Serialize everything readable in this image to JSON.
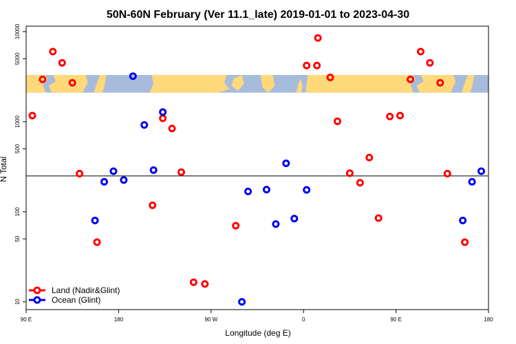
{
  "chart_data": {
    "type": "scatter",
    "title": "50N-60N February (Ver 11.1_late)   2019-01-01 to 2023-04-30",
    "xlabel": "Longitude (deg E)",
    "ylabel": "N Total",
    "xscale": "linear",
    "yscale": "log",
    "xlim": [
      90,
      540
    ],
    "ylim": [
      8.2,
      11500
    ],
    "x_ticks": [
      {
        "value": 90,
        "label": "90 E"
      },
      {
        "value": 180,
        "label": "180"
      },
      {
        "value": 270,
        "label": "90 W"
      },
      {
        "value": 360,
        "label": "0"
      },
      {
        "value": 450,
        "label": "90 E"
      },
      {
        "value": 540,
        "label": "180"
      }
    ],
    "y_ticks": [
      {
        "value": 10,
        "label": "10"
      },
      {
        "value": 50,
        "label": "50"
      },
      {
        "value": 100,
        "label": "100"
      },
      {
        "value": 500,
        "label": "500"
      },
      {
        "value": 1000,
        "label": "1000"
      },
      {
        "value": 5000,
        "label": "5000"
      },
      {
        "value": 10000,
        "label": "10000"
      }
    ],
    "reference_line": 250,
    "map_strip": {
      "y_range": [
        2100,
        3300
      ],
      "land_color": "#FFD97A",
      "ocean_color": "#A7BCDD"
    },
    "series": [
      {
        "name": "Land (Nadir&Glint)",
        "color": "#FF0000",
        "points": [
          {
            "x": 96,
            "y": 1170
          },
          {
            "x": 106,
            "y": 2950
          },
          {
            "x": 116,
            "y": 6000
          },
          {
            "x": 125,
            "y": 4500
          },
          {
            "x": 135,
            "y": 2700
          },
          {
            "x": 142,
            "y": 265
          },
          {
            "x": 159,
            "y": 46
          },
          {
            "x": 213,
            "y": 118
          },
          {
            "x": 223,
            "y": 1090
          },
          {
            "x": 232,
            "y": 840
          },
          {
            "x": 241,
            "y": 275
          },
          {
            "x": 253,
            "y": 16.5
          },
          {
            "x": 264,
            "y": 15.8
          },
          {
            "x": 294,
            "y": 70
          },
          {
            "x": 363,
            "y": 4200
          },
          {
            "x": 373,
            "y": 4200
          },
          {
            "x": 374,
            "y": 8500
          },
          {
            "x": 386,
            "y": 3100
          },
          {
            "x": 393,
            "y": 1010
          },
          {
            "x": 405,
            "y": 268
          },
          {
            "x": 415,
            "y": 210
          },
          {
            "x": 424,
            "y": 400
          },
          {
            "x": 433,
            "y": 85
          },
          {
            "x": 444,
            "y": 1140
          },
          {
            "x": 454,
            "y": 1170
          },
          {
            "x": 464,
            "y": 2950
          },
          {
            "x": 474,
            "y": 6000
          },
          {
            "x": 483,
            "y": 4500
          },
          {
            "x": 493,
            "y": 2700
          },
          {
            "x": 500,
            "y": 265
          },
          {
            "x": 517,
            "y": 46
          }
        ]
      },
      {
        "name": "Ocean (Glint)",
        "color": "#0000EE",
        "points": [
          {
            "x": 157,
            "y": 80
          },
          {
            "x": 166,
            "y": 215
          },
          {
            "x": 175,
            "y": 282
          },
          {
            "x": 185,
            "y": 225
          },
          {
            "x": 194,
            "y": 3200
          },
          {
            "x": 205,
            "y": 920
          },
          {
            "x": 214,
            "y": 290
          },
          {
            "x": 223,
            "y": 1280
          },
          {
            "x": 300,
            "y": 10
          },
          {
            "x": 306,
            "y": 168
          },
          {
            "x": 324,
            "y": 176
          },
          {
            "x": 333,
            "y": 73
          },
          {
            "x": 343,
            "y": 345
          },
          {
            "x": 351,
            "y": 84
          },
          {
            "x": 363,
            "y": 175
          },
          {
            "x": 515,
            "y": 80
          },
          {
            "x": 524,
            "y": 215
          },
          {
            "x": 533,
            "y": 282
          }
        ]
      }
    ]
  }
}
